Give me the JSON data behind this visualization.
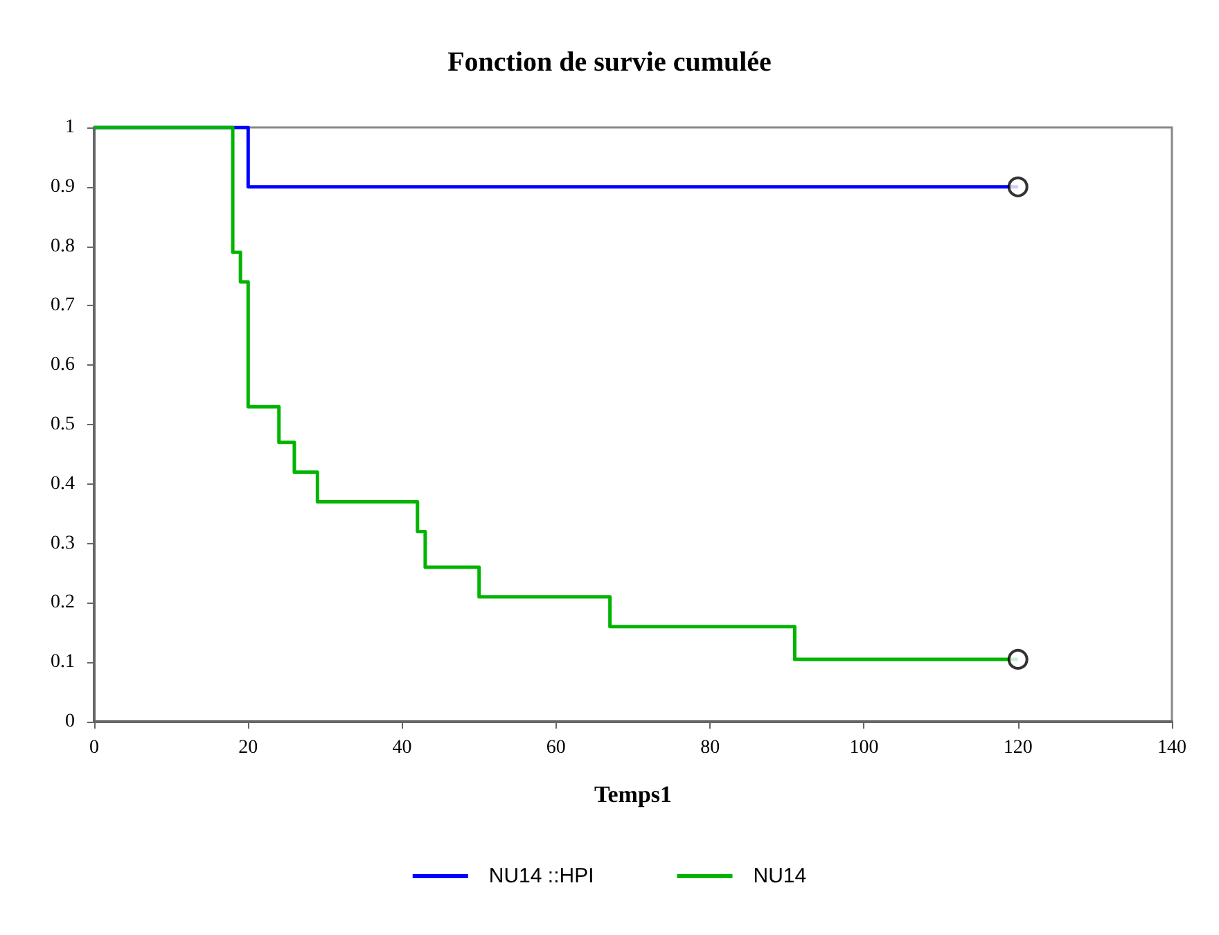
{
  "chart_data": {
    "type": "step",
    "title": "Fonction de survie cumulée",
    "xlabel": "Temps1",
    "series": [
      {
        "name": "NU14 ::HPI",
        "color": "#0000ff",
        "x": [
          0,
          20,
          120
        ],
        "values": [
          1,
          0.9,
          0.9
        ]
      },
      {
        "name": "NU14",
        "color": "#00b400",
        "x": [
          0,
          18,
          19,
          20,
          24,
          26,
          29,
          42,
          43,
          50,
          67,
          91,
          120
        ],
        "values": [
          1,
          0.79,
          0.74,
          0.53,
          0.47,
          0.42,
          0.37,
          0.32,
          0.26,
          0.21,
          0.16,
          0.105,
          0.105
        ]
      },
      {
        "type": "scatter",
        "color": "#000000",
        "marker": "circle",
        "x": [
          120,
          120
        ],
        "values": [
          0.9,
          0.105
        ]
      }
    ],
    "xlim": [
      0,
      140
    ],
    "xticks": [
      0,
      20,
      40,
      60,
      80,
      100,
      120,
      140
    ],
    "ylim": [
      0,
      1
    ],
    "yticks": [
      0,
      0.1,
      0.2,
      0.3,
      0.4,
      0.5,
      0.6,
      0.7,
      0.8,
      0.9,
      1
    ],
    "grid": false,
    "legend": "bottom",
    "marker": "none",
    "line_style": "solid"
  }
}
